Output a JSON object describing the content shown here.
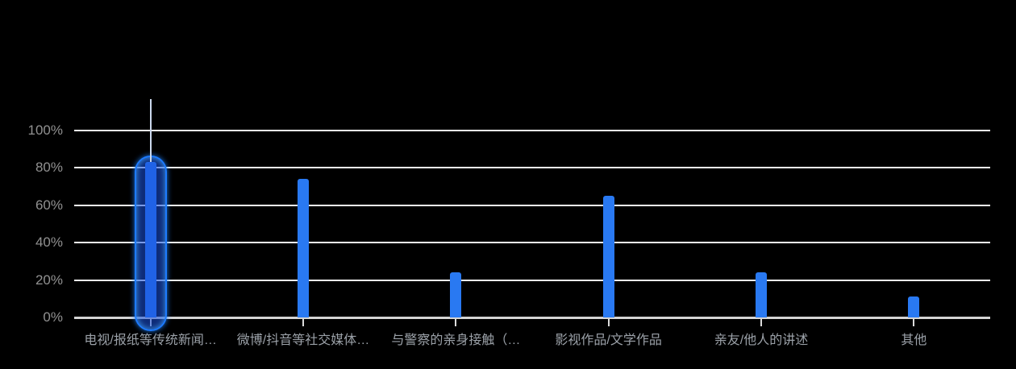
{
  "chart_data": {
    "type": "bar",
    "title": "",
    "xlabel": "",
    "ylabel": "",
    "categories": [
      "电视/报纸等传统新闻…",
      "微博/抖音等社交媒体…",
      "与警察的亲身接触（…",
      "影视作品/文学作品",
      "亲友/他人的讲述",
      "其他"
    ],
    "values": [
      83,
      74,
      24,
      65,
      24,
      11
    ],
    "unit": "%",
    "ylim": [
      0,
      100
    ],
    "ytick_values": [
      0,
      20,
      40,
      60,
      80,
      100
    ],
    "ytick_labels": [
      "0%",
      "20%",
      "40%",
      "60%",
      "80%",
      "100%"
    ],
    "grid": "horizontal-on",
    "legend": "none",
    "selected_index": 0,
    "colors": {
      "background": "#000000",
      "bar": "#2979f2",
      "gridline": "#f7f7f7",
      "baseline": "#d4d4d4",
      "axis_tick": "#dcdcdc",
      "y_label": "#919191",
      "x_label": "#9ba1a8",
      "selection_ring": "#1d7bff",
      "selection_fill": "rgba(25,80,220,0.55)",
      "crosshair": "#ccd9ee"
    }
  }
}
